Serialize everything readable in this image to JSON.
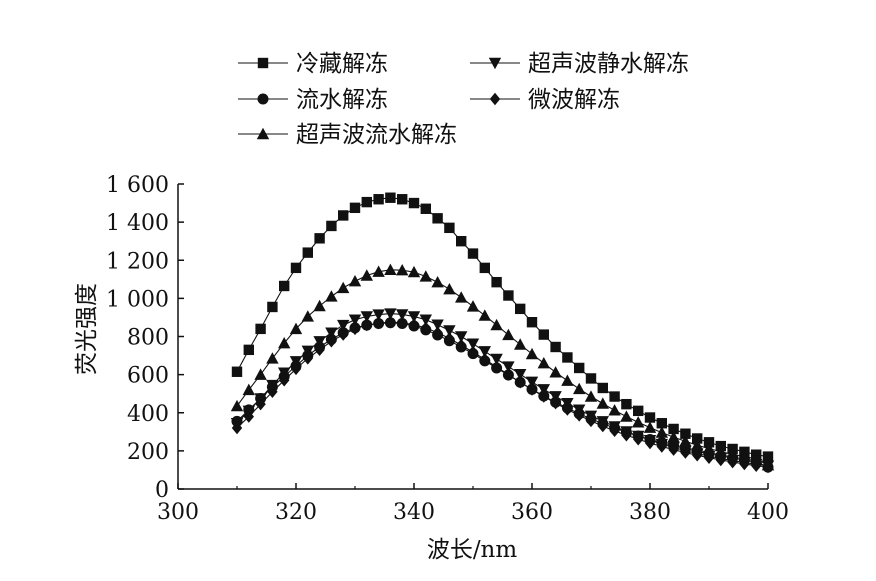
{
  "chart_data": {
    "type": "line",
    "title": "",
    "xlabel": "波长/nm",
    "ylabel": "荧光强度",
    "xlim": [
      300,
      400
    ],
    "ylim": [
      0,
      1600
    ],
    "xticks": [
      300,
      320,
      340,
      360,
      380,
      400
    ],
    "xtick_labels": [
      "300",
      "320",
      "340",
      "360",
      "380",
      "400"
    ],
    "yticks": [
      0,
      200,
      400,
      600,
      800,
      1000,
      1200,
      1400,
      1600
    ],
    "ytick_labels": [
      "0",
      "200",
      "400",
      "600",
      "800",
      "1 000",
      "1 200",
      "1 400",
      "1 600"
    ],
    "grid": false,
    "legend_position": "top",
    "x": [
      310,
      312,
      314,
      316,
      318,
      320,
      322,
      324,
      326,
      328,
      330,
      332,
      334,
      336,
      338,
      340,
      342,
      344,
      346,
      348,
      350,
      352,
      354,
      356,
      358,
      360,
      362,
      364,
      366,
      368,
      370,
      372,
      374,
      376,
      378,
      380,
      382,
      384,
      386,
      388,
      390,
      392,
      394,
      396,
      398,
      400
    ],
    "series": [
      {
        "name": "冷藏解冻",
        "marker": "square",
        "values": [
          615,
          730,
          840,
          955,
          1065,
          1160,
          1240,
          1315,
          1380,
          1435,
          1475,
          1505,
          1520,
          1528,
          1520,
          1500,
          1470,
          1420,
          1370,
          1300,
          1235,
          1160,
          1085,
          1015,
          945,
          875,
          810,
          745,
          690,
          635,
          580,
          530,
          485,
          445,
          410,
          375,
          345,
          315,
          290,
          265,
          245,
          225,
          210,
          195,
          180,
          170
        ]
      },
      {
        "name": "流水解冻",
        "marker": "circle",
        "values": [
          355,
          415,
          475,
          535,
          590,
          645,
          700,
          745,
          785,
          820,
          845,
          860,
          868,
          872,
          868,
          855,
          835,
          808,
          778,
          745,
          710,
          672,
          635,
          598,
          560,
          523,
          488,
          455,
          425,
          395,
          368,
          343,
          320,
          298,
          278,
          260,
          243,
          227,
          212,
          198,
          185,
          173,
          162,
          152,
          142,
          115
        ]
      },
      {
        "name": "超声波流水解冻",
        "marker": "triangle-up",
        "values": [
          435,
          520,
          600,
          685,
          765,
          840,
          905,
          960,
          1010,
          1055,
          1090,
          1120,
          1140,
          1150,
          1148,
          1138,
          1115,
          1085,
          1048,
          1005,
          958,
          910,
          860,
          808,
          758,
          708,
          660,
          612,
          568,
          525,
          485,
          448,
          413,
          380,
          350,
          322,
          296,
          272,
          250,
          230,
          212,
          196,
          182,
          170,
          158,
          125
        ]
      },
      {
        "name": "超声波静水解冻",
        "marker": "triangle-down",
        "values": [
          345,
          410,
          475,
          545,
          610,
          670,
          725,
          775,
          820,
          860,
          888,
          905,
          915,
          920,
          916,
          905,
          888,
          862,
          832,
          800,
          762,
          722,
          682,
          642,
          602,
          562,
          523,
          486,
          450,
          416,
          384,
          355,
          328,
          302,
          278,
          256,
          236,
          218,
          201,
          186,
          172,
          160,
          149,
          139,
          130,
          122
        ]
      },
      {
        "name": "微波解冻",
        "marker": "diamond",
        "values": [
          320,
          380,
          445,
          510,
          570,
          630,
          685,
          730,
          775,
          810,
          840,
          860,
          870,
          876,
          872,
          862,
          845,
          820,
          790,
          755,
          718,
          680,
          640,
          600,
          560,
          522,
          485,
          450,
          417,
          386,
          357,
          330,
          305,
          282,
          261,
          241,
          223,
          206,
          191,
          177,
          164,
          152,
          141,
          131,
          122,
          115
        ]
      }
    ]
  }
}
